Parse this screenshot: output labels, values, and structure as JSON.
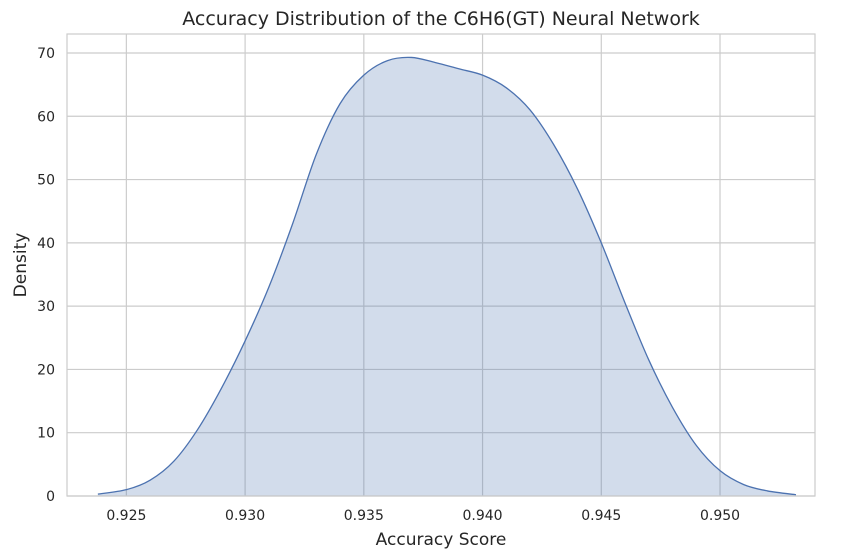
{
  "chart_data": {
    "type": "area",
    "title": "Accuracy Distribution of the C6H6(GT) Neural Network",
    "xlabel": "Accuracy Score",
    "ylabel": "Density",
    "xlim": [
      0.9225,
      0.954
    ],
    "ylim": [
      0,
      73
    ],
    "xticks": [
      0.925,
      0.93,
      0.935,
      0.94,
      0.945,
      0.95
    ],
    "xtick_labels": [
      "0.925",
      "0.930",
      "0.935",
      "0.940",
      "0.945",
      "0.950"
    ],
    "yticks": [
      0,
      10,
      20,
      30,
      40,
      50,
      60,
      70
    ],
    "ytick_labels": [
      "0",
      "10",
      "20",
      "30",
      "40",
      "50",
      "60",
      "70"
    ],
    "grid": true,
    "series": [
      {
        "color": "#4c72b0",
        "x": [
          0.9238,
          0.925,
          0.926,
          0.927,
          0.928,
          0.929,
          0.93,
          0.931,
          0.932,
          0.933,
          0.934,
          0.935,
          0.936,
          0.937,
          0.938,
          0.939,
          0.94,
          0.941,
          0.942,
          0.943,
          0.944,
          0.945,
          0.946,
          0.947,
          0.948,
          0.949,
          0.95,
          0.951,
          0.952,
          0.9532
        ],
        "y": [
          0.3,
          1.0,
          2.5,
          5.5,
          10.5,
          17.0,
          24.5,
          33.0,
          43.0,
          54.0,
          62.0,
          66.5,
          68.8,
          69.3,
          68.5,
          67.5,
          66.5,
          64.5,
          61.0,
          55.5,
          48.5,
          40.0,
          30.5,
          21.5,
          14.0,
          8.0,
          4.0,
          1.8,
          0.8,
          0.2
        ]
      }
    ]
  }
}
